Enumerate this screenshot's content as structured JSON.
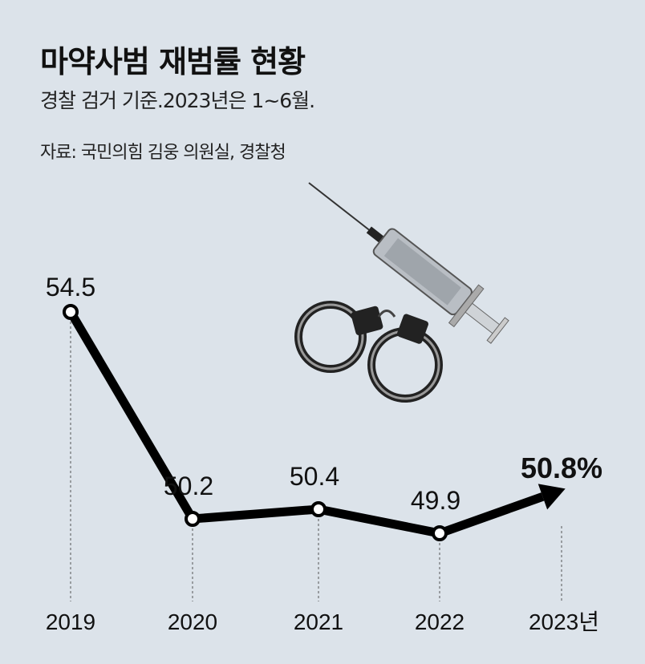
{
  "header": {
    "title": "마약사범 재범률 현황",
    "subtitle": "경찰 검거 기준.2023년은 1~6월.",
    "source": "자료: 국민의힘 김웅 의원실, 경찰청"
  },
  "chart_data": {
    "type": "line",
    "title": "마약사범 재범률 현황",
    "categories": [
      "2019",
      "2020",
      "2021",
      "2022",
      "2023년"
    ],
    "values": [
      54.5,
      50.2,
      50.4,
      49.9,
      50.8
    ],
    "labels": [
      "54.5",
      "50.2",
      "50.4",
      "49.9",
      "50.8%"
    ],
    "unit": "%",
    "xlabel": "",
    "ylabel": "",
    "grid": false,
    "last_point_style": "arrow",
    "colors": {
      "line": "#000000",
      "background": "#dce3ea",
      "guide": "#555555"
    }
  }
}
